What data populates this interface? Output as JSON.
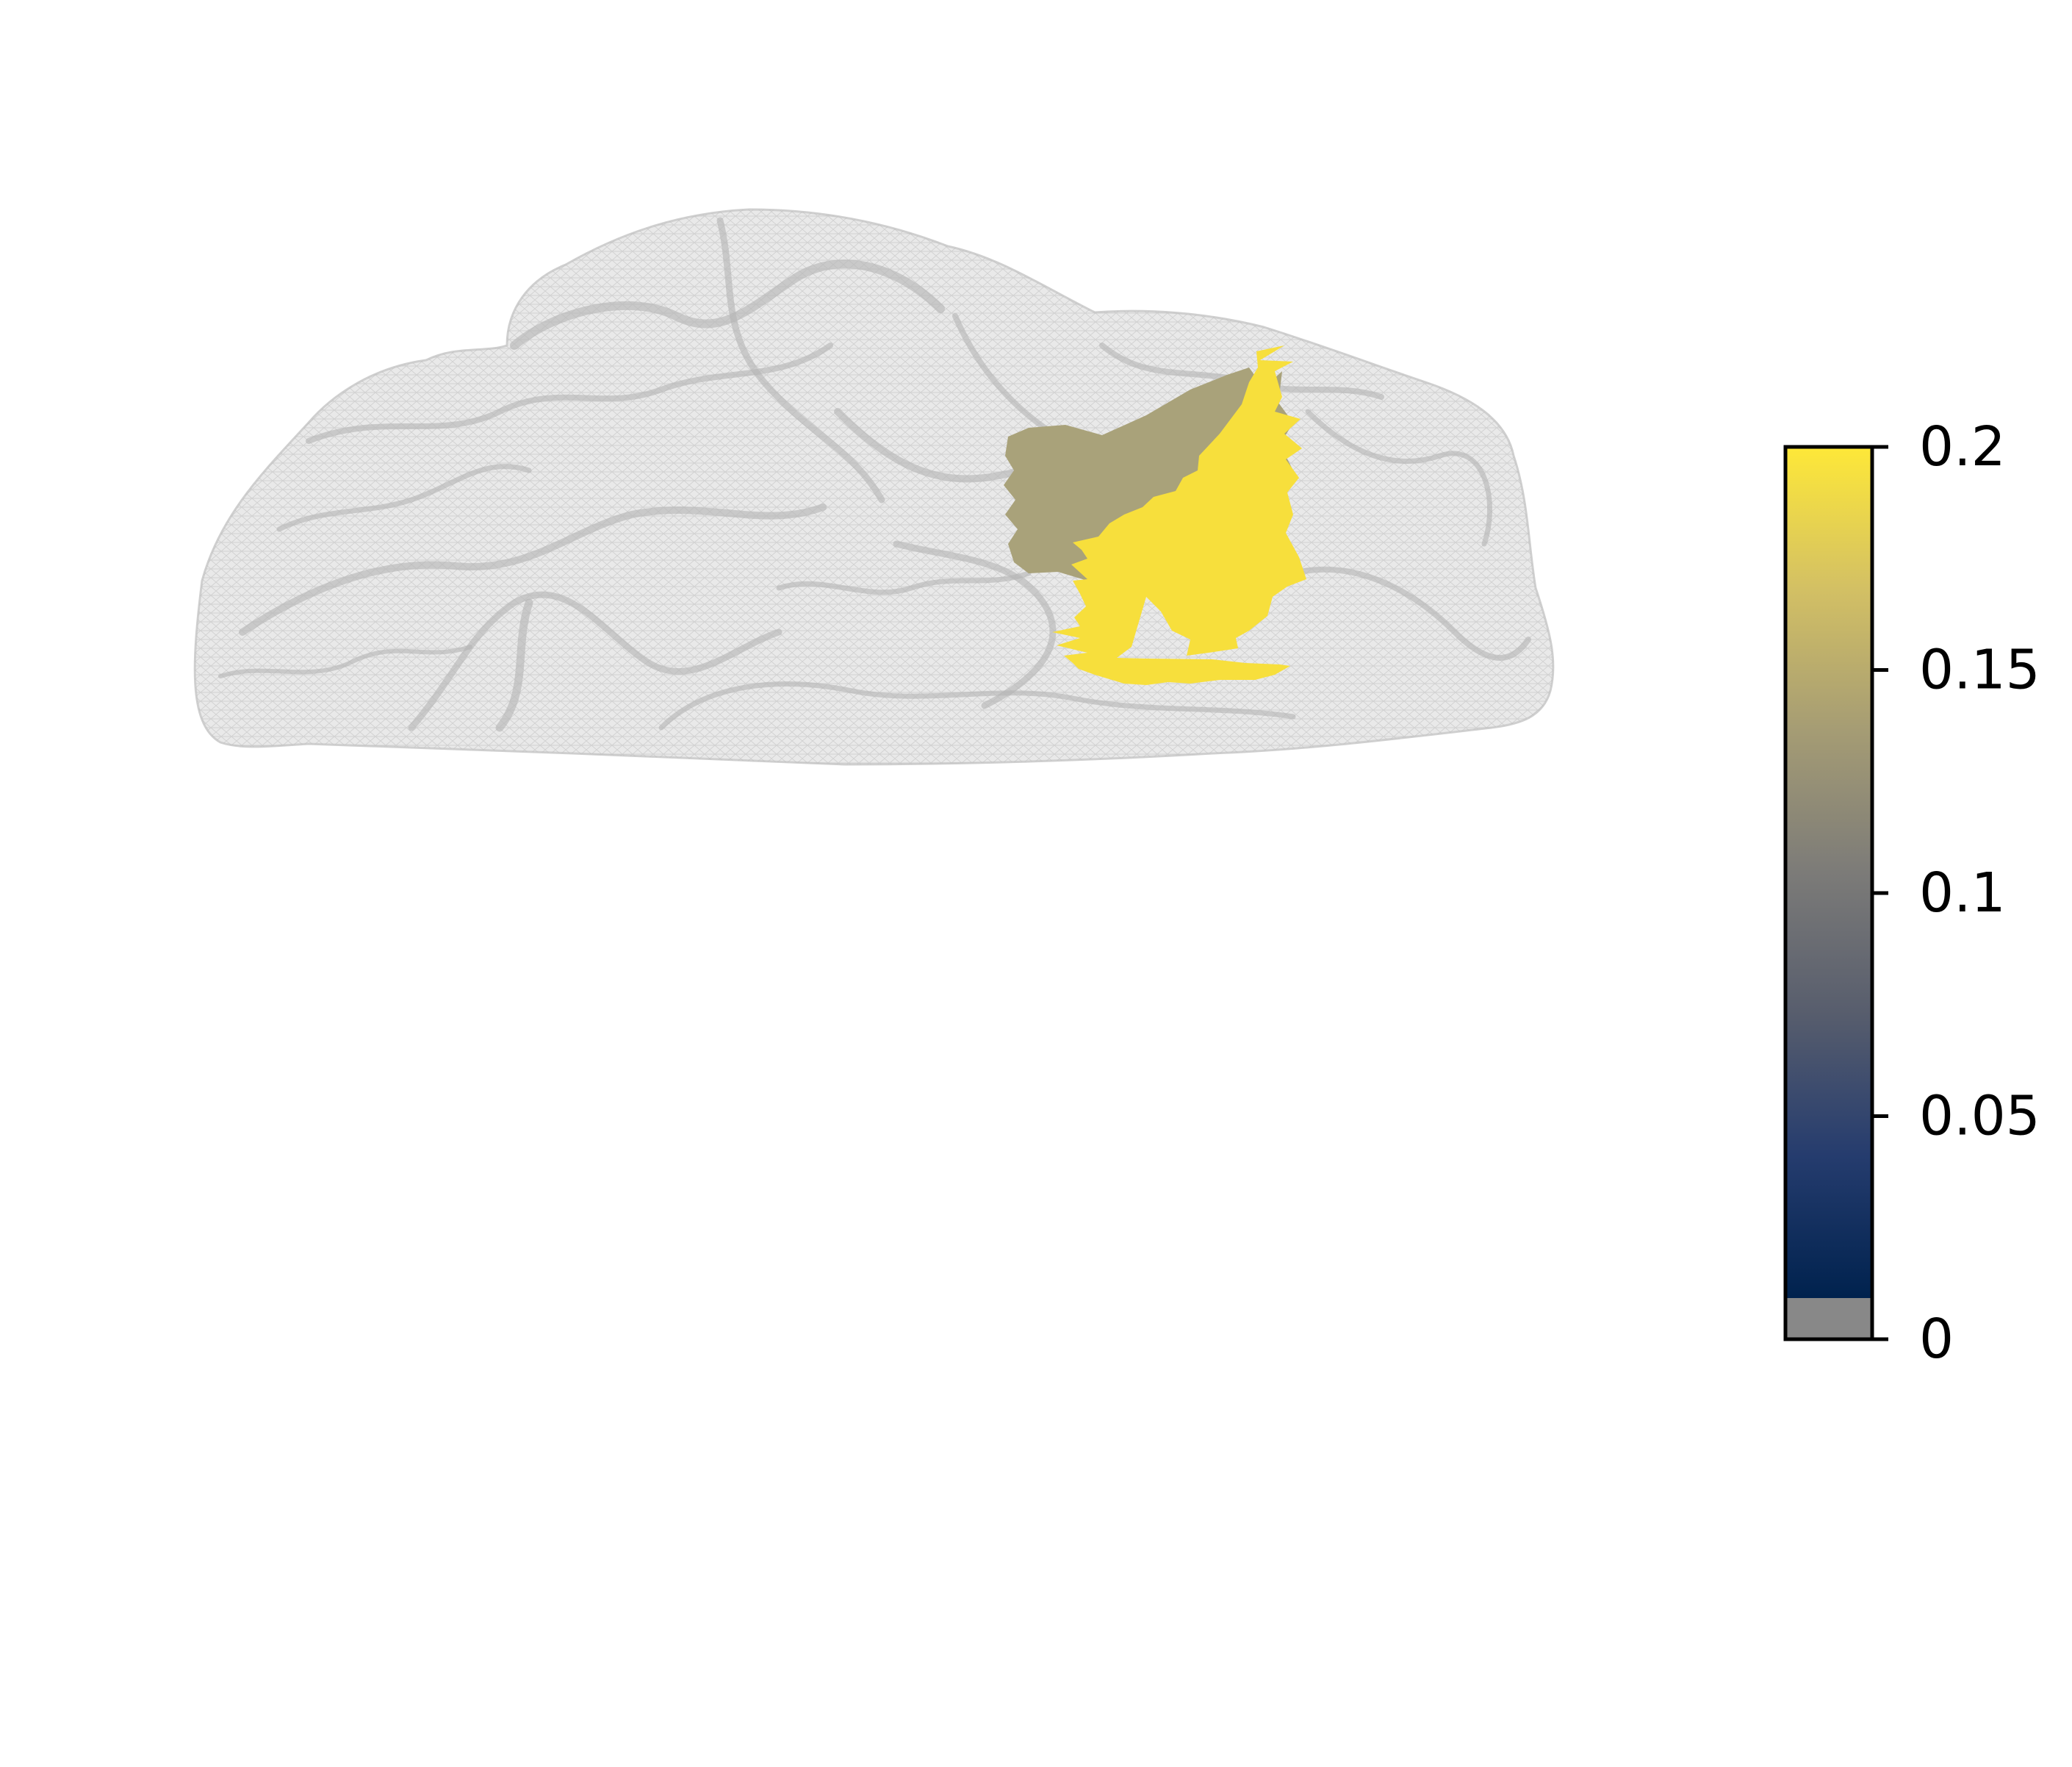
{
  "figure": {
    "surface": {
      "mesh_color": "#c8c8c8",
      "fold_color": "#b4b4b4",
      "mesh_opacity": 0.5
    },
    "overlay": {
      "low_region_color": "#a9a27a",
      "high_region_color": "#f7df3c"
    },
    "colorbar": {
      "colormap": "cividis",
      "below_range_color": "#888888",
      "range": [
        0,
        0.2
      ],
      "ticks": [
        "0",
        "0.05",
        "0.1",
        "0.15",
        "0.2"
      ],
      "stops": [
        "#00224e",
        "#253c6e",
        "#575d6d",
        "#7c7b78",
        "#a59c74",
        "#d3c064",
        "#fee838"
      ]
    }
  }
}
